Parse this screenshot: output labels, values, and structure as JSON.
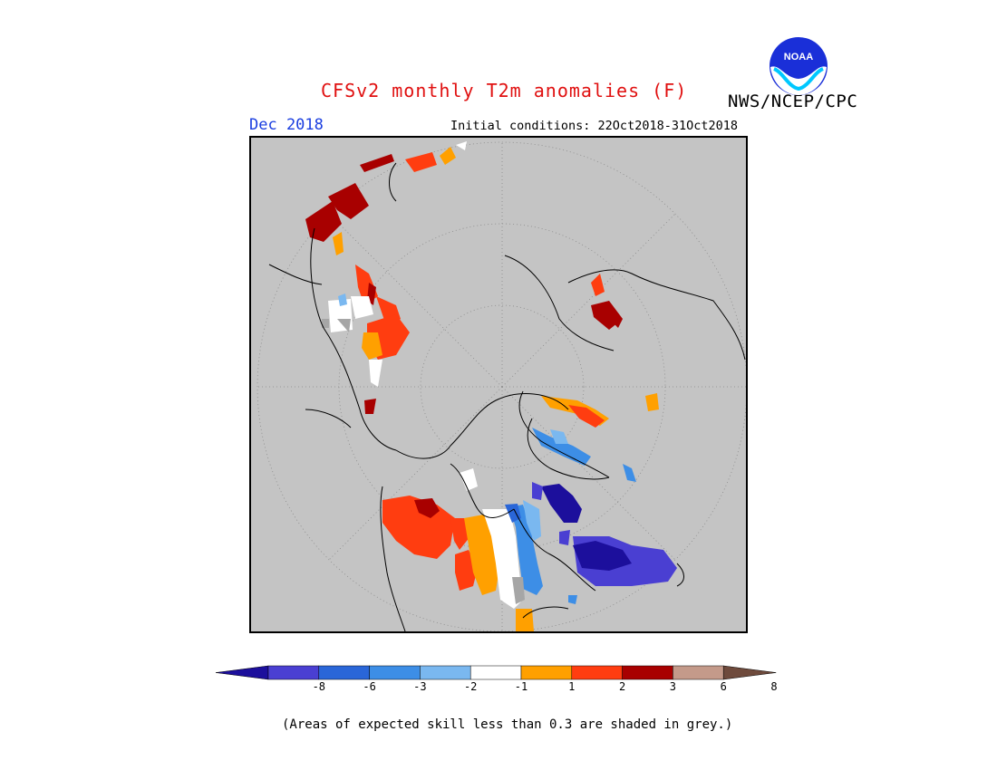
{
  "header": {
    "title": "CFSv2 monthly T2m anomalies (F)",
    "agency": "NWS/NCEP/CPC",
    "month": "Dec 2018",
    "initial_conditions": "Initial conditions: 22Oct2018-31Oct2018"
  },
  "logo": {
    "icon": "noaa-logo-icon",
    "text": "NOAA"
  },
  "colorbar": {
    "ticks": [
      "-8",
      "-6",
      "-3",
      "-2",
      "-1",
      "1",
      "2",
      "3",
      "6",
      "8"
    ],
    "colors": [
      "#1c0f9c",
      "#4a3fd2",
      "#2a66d8",
      "#3d8ee6",
      "#7ab8f0",
      "#ffffff",
      "#ffa000",
      "#ff3d10",
      "#a80000",
      "#c49a8a",
      "#6e4a3c"
    ]
  },
  "footer": {
    "note": "(Areas of expected skill less than 0.3 are shaded in grey.)"
  }
}
